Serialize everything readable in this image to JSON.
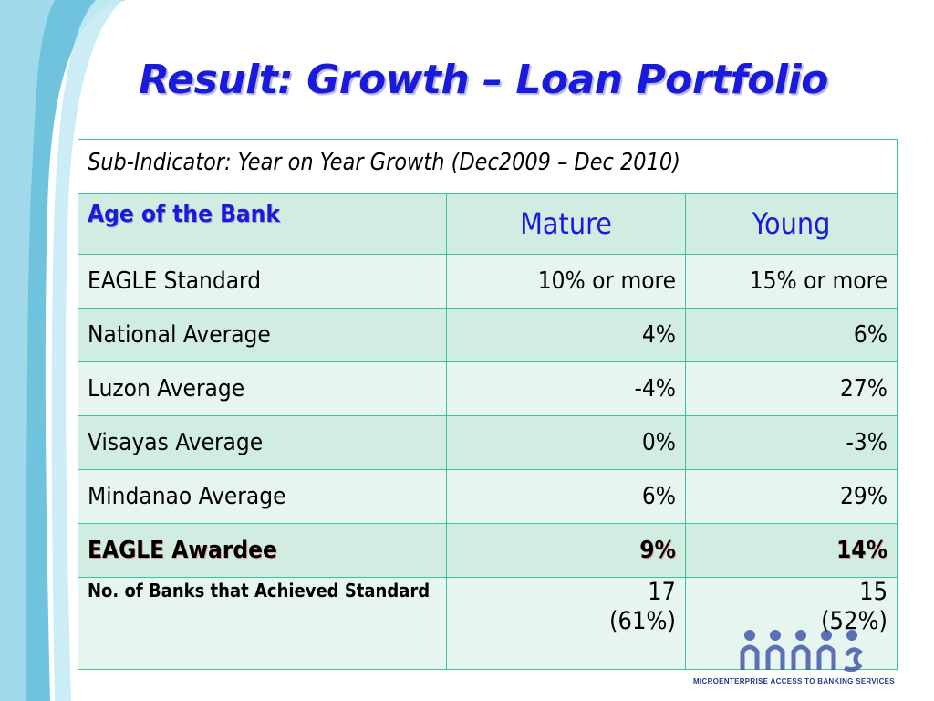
{
  "title": "Result: Growth – Loan Portfolio",
  "sub_indicator": "Sub-Indicator: Year on Year Growth (Dec2009 – Dec 2010)",
  "table": {
    "header": {
      "label": "Age of the Bank",
      "col1": "Mature",
      "col2": "Young"
    },
    "rows": [
      {
        "label": "EAGLE Standard",
        "mature": "10% or more",
        "young": "15% or more"
      },
      {
        "label": "National Average",
        "mature": "4%",
        "young": "6%"
      },
      {
        "label": "Luzon Average",
        "mature": "-4%",
        "young": "27%"
      },
      {
        "label": "Visayas Average",
        "mature": "0%",
        "young": "-3%"
      },
      {
        "label": "Mindanao Average",
        "mature": "6%",
        "young": "29%"
      },
      {
        "label": "EAGLE Awardee",
        "mature": "9%",
        "young": "14%"
      }
    ],
    "last_row": {
      "label": "No. of Banks that Achieved Standard",
      "mature_count": "17",
      "mature_pct": "(61%)",
      "young_count": "15",
      "young_pct": "(52%)"
    }
  },
  "logo": {
    "icon": "mabs-people-logo",
    "tagline": "MICROENTERPRISE ACCESS TO BANKING SERVICES"
  },
  "colors": {
    "title": "#1a1adc",
    "border": "#3cc39a",
    "row_light": "#e6f5ef",
    "row_dark": "#d1ede1",
    "awardee": "#b30000",
    "swoosh": "#7ecbe0"
  }
}
